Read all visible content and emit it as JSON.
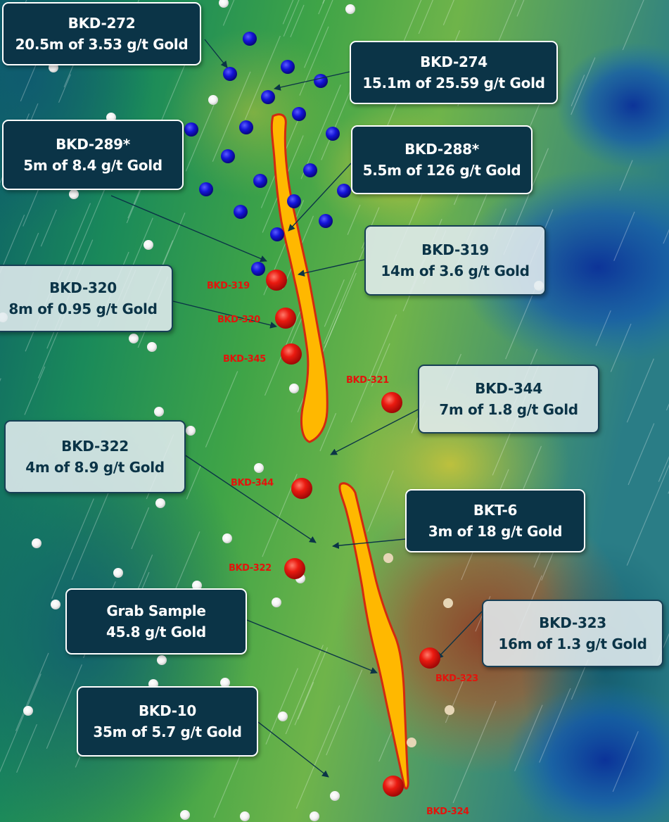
{
  "callouts": [
    {
      "id": "BKD-272",
      "hole": "BKD-272",
      "result": "20.5m of 3.53 g/t Gold",
      "style": "dark"
    },
    {
      "id": "BKD-274",
      "hole": "BKD-274",
      "result": "15.1m of 25.59 g/t Gold",
      "style": "dark"
    },
    {
      "id": "BKD-289",
      "hole": "BKD-289*",
      "result": "5m of 8.4 g/t Gold",
      "style": "dark"
    },
    {
      "id": "BKD-288",
      "hole": "BKD-288*",
      "result": "5.5m of 126 g/t Gold",
      "style": "dark"
    },
    {
      "id": "BKD-319",
      "hole": "BKD-319",
      "result": "14m of 3.6 g/t Gold",
      "style": "light"
    },
    {
      "id": "BKD-320",
      "hole": "BKD-320",
      "result": "8m of 0.95 g/t Gold",
      "style": "light"
    },
    {
      "id": "BKD-344",
      "hole": "BKD-344",
      "result": "7m of 1.8 g/t Gold",
      "style": "light"
    },
    {
      "id": "BKD-322",
      "hole": "BKD-322",
      "result": "4m of 8.9 g/t Gold",
      "style": "light"
    },
    {
      "id": "BKT-6",
      "hole": "BKT-6",
      "result": "3m of 18 g/t Gold",
      "style": "dark"
    },
    {
      "id": "GRAB",
      "hole": "Grab Sample",
      "result": "45.8 g/t Gold",
      "style": "dark"
    },
    {
      "id": "BKD-323",
      "hole": "BKD-323",
      "result": "16m of 1.3 g/t Gold",
      "style": "light"
    },
    {
      "id": "BKD-10",
      "hole": "BKD-10",
      "result": "35m of 5.7 g/t Gold",
      "style": "dark"
    }
  ],
  "hole_labels": [
    "BKD-319",
    "BKD-320",
    "BKD-345",
    "BKD-321",
    "BKD-344",
    "BKD-322",
    "BKD-323",
    "BKD-324"
  ],
  "legend_colors": {
    "new_holes": "#e3140c",
    "previous_holes": "#1a1ad6",
    "historic_holes": "#ffffff",
    "vein": "#ffb800",
    "vein_outline": "#d22a10"
  }
}
